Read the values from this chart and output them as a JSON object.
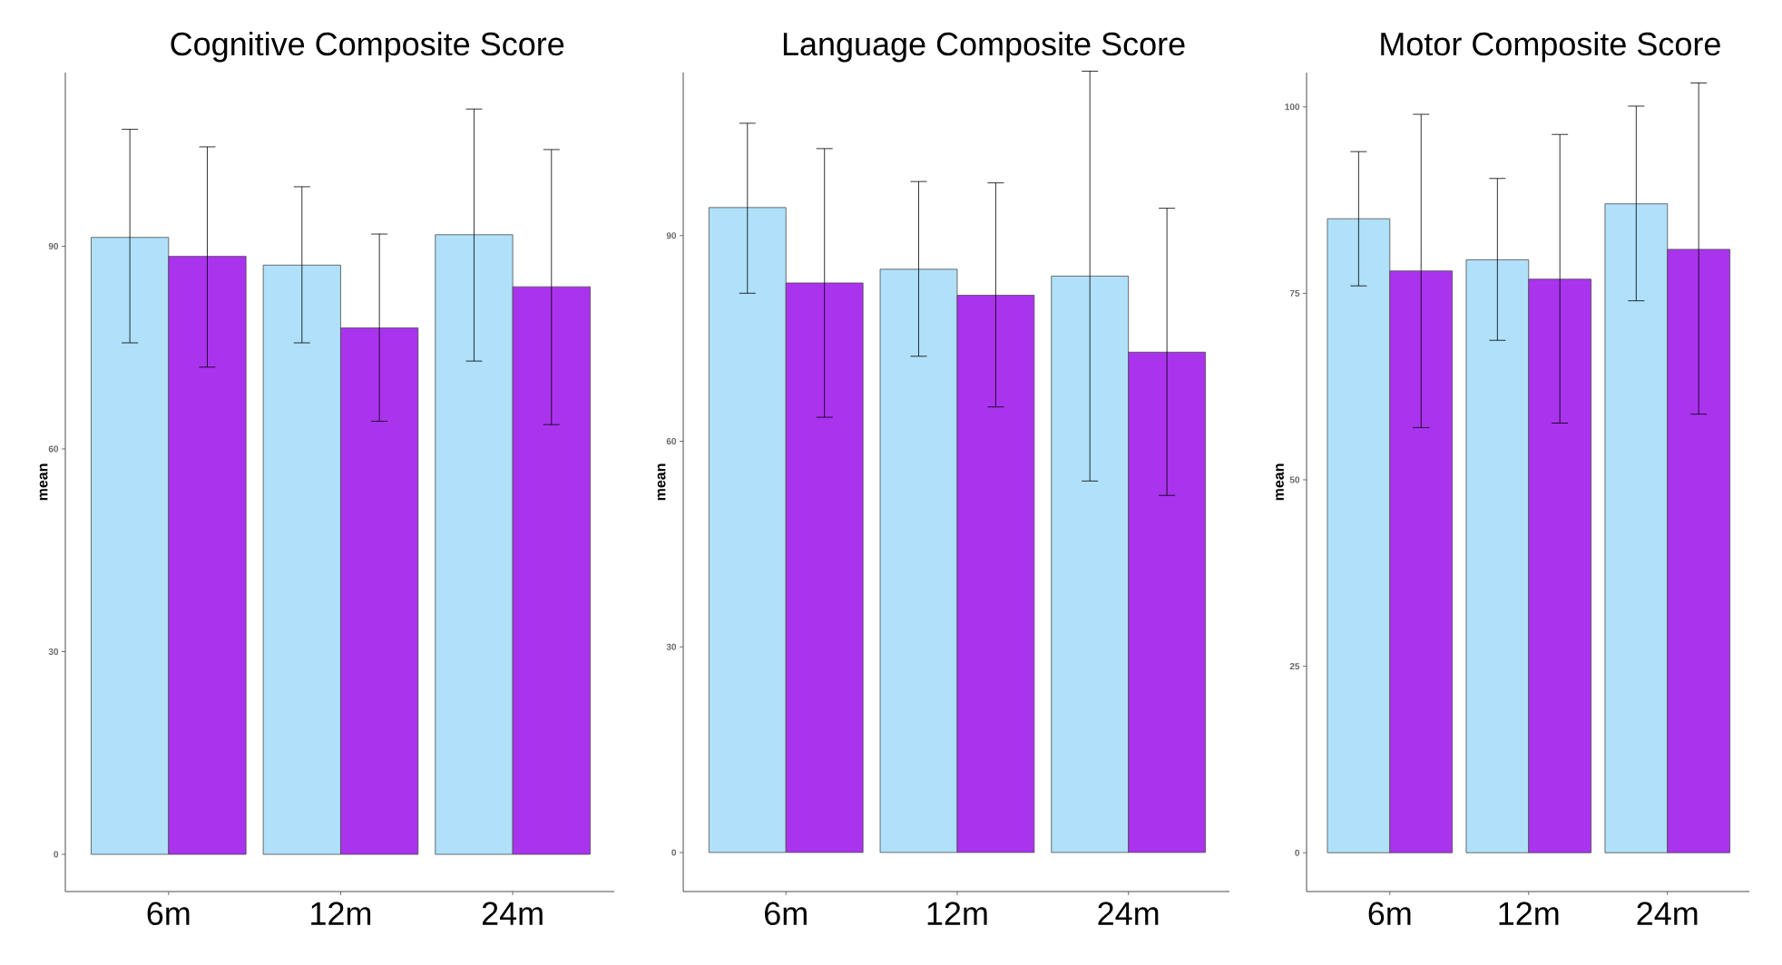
{
  "chart_data": [
    {
      "type": "bar",
      "title": "Cognitive Composite Score",
      "ylabel": "mean",
      "categories": [
        "6m",
        "12m",
        "24m"
      ],
      "ylim": [
        -5.5,
        115.7
      ],
      "yticks": [
        0,
        30,
        60,
        90
      ],
      "series": [
        {
          "color": "#b0e0fa",
          "values": [
            91.3,
            87.2,
            91.7
          ],
          "errors": [
            [
              75.7,
              107.3
            ],
            [
              75.7,
              98.8
            ],
            [
              73.0,
              110.3
            ]
          ]
        },
        {
          "color": "#aa33ee",
          "values": [
            88.5,
            77.9,
            84.0
          ],
          "errors": [
            [
              72.1,
              104.7
            ],
            [
              64.1,
              91.8
            ],
            [
              63.6,
              104.3
            ]
          ]
        }
      ]
    },
    {
      "type": "bar",
      "title": "Language Composite Score",
      "ylabel": "mean",
      "categories": [
        "6m",
        "12m",
        "24m"
      ],
      "ylim": [
        -5.7,
        113.8
      ],
      "yticks": [
        0,
        30,
        60,
        90
      ],
      "series": [
        {
          "color": "#b0e0fa",
          "values": [
            94.1,
            85.1,
            84.1
          ],
          "errors": [
            [
              81.6,
              106.4
            ],
            [
              72.4,
              97.9
            ],
            [
              54.2,
              114.0
            ]
          ]
        },
        {
          "color": "#aa33ee",
          "values": [
            83.1,
            81.3,
            73.0
          ],
          "errors": [
            [
              63.5,
              102.7
            ],
            [
              65.0,
              97.7
            ],
            [
              52.1,
              94.0
            ]
          ]
        }
      ]
    },
    {
      "type": "bar",
      "title": "Motor Composite Score",
      "ylabel": "mean",
      "categories": [
        "6m",
        "12m",
        "24m"
      ],
      "ylim": [
        -5.2,
        104.6
      ],
      "yticks": [
        0,
        25,
        50,
        75,
        100
      ],
      "series": [
        {
          "color": "#b0e0fa",
          "values": [
            85.0,
            79.5,
            87.0
          ],
          "errors": [
            [
              76.0,
              94.0
            ],
            [
              68.7,
              90.4
            ],
            [
              74.0,
              100.1
            ]
          ]
        },
        {
          "color": "#aa33ee",
          "values": [
            78.0,
            76.9,
            80.9
          ],
          "errors": [
            [
              57.0,
              99.0
            ],
            [
              57.6,
              96.3
            ],
            [
              58.8,
              103.2
            ]
          ]
        }
      ]
    }
  ]
}
